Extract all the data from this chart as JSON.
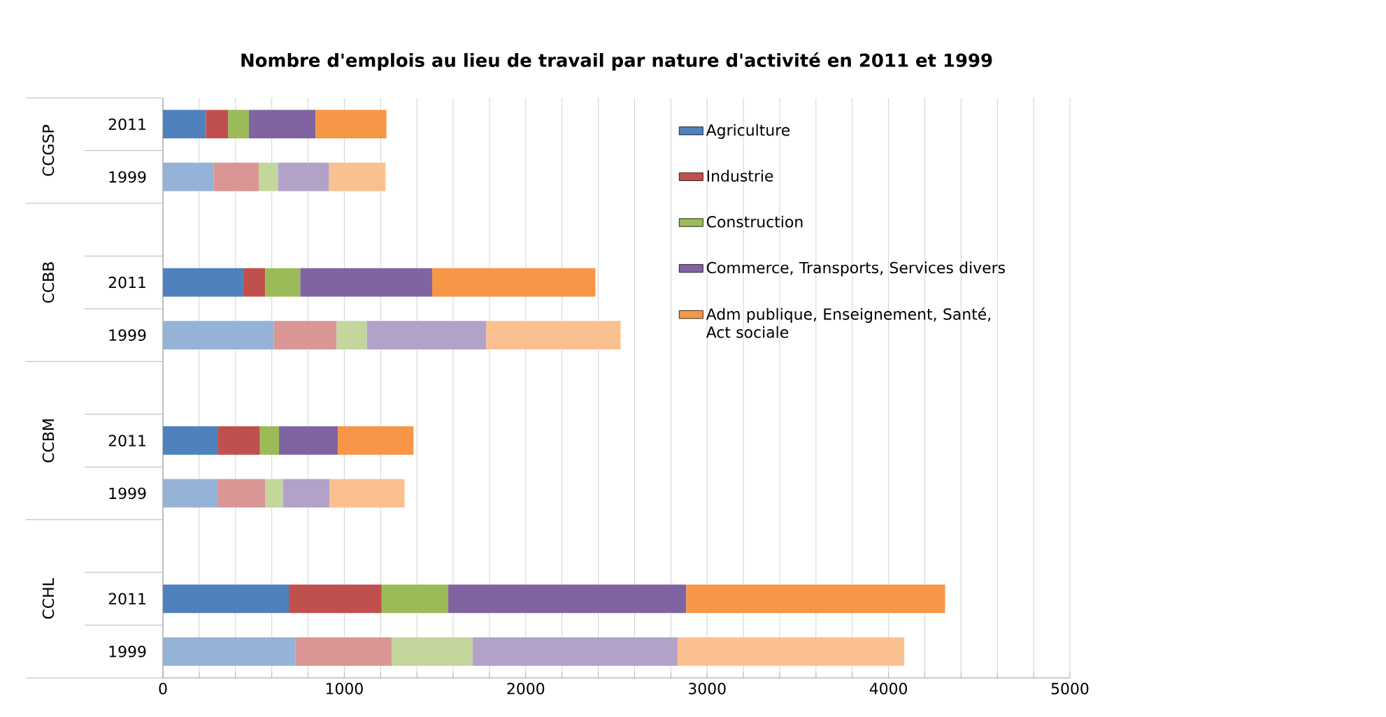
{
  "chart_data": {
    "type": "bar",
    "orientation": "horizontal",
    "stacked": true,
    "title": "Nombre d'emplois au lieu de travail par nature d'activité en 2011 et 1999",
    "categories": [
      "2011",
      "1999",
      null,
      "2011",
      "1999",
      null,
      "2011",
      "1999",
      null,
      "2011",
      "1999"
    ],
    "annotations": [
      "CCGSP",
      "CCBB",
      "CCBM",
      "CCHL"
    ],
    "series": [
      {
        "name": "Agriculture",
        "color": "#4f81bd",
        "colors": [
          "#4f81bd",
          "#95b3d7",
          null,
          "#4f81bd",
          "#95b3d7",
          null,
          "#4f81bd",
          "#95b3d7",
          null,
          "#4f81bd",
          "#95b3d7"
        ],
        "values": [
          237,
          279,
          null,
          443,
          611,
          null,
          301,
          301,
          null,
          694,
          730
        ]
      },
      {
        "name": "Industrie",
        "color": "#c0504d",
        "colors": [
          "#c0504d",
          "#d99694",
          null,
          "#c0504d",
          "#d99694",
          null,
          "#c0504d",
          "#d99694",
          null,
          "#c0504d",
          "#d99694"
        ],
        "values": [
          123,
          249,
          null,
          121,
          347,
          null,
          234,
          262,
          null,
          512,
          532
        ]
      },
      {
        "name": "Construction",
        "color": "#9bbb59",
        "colors": [
          "#9bbb59",
          "#c3d69b",
          null,
          "#9bbb59",
          "#c3d69b",
          null,
          "#9bbb59",
          "#c3d69b",
          null,
          "#9bbb59",
          "#c3d69b"
        ],
        "values": [
          114,
          106,
          null,
          193,
          166,
          null,
          105,
          98,
          null,
          367,
          445
        ]
      },
      {
        "name": "Commerce, Transports, Services divers",
        "color": "#8064a2",
        "colors": [
          "#8064a2",
          "#b3a2c7",
          null,
          "#8064a2",
          "#b3a2c7",
          null,
          "#8064a2",
          "#b3a2c7",
          null,
          "#8064a2",
          "#b3a2c7"
        ],
        "values": [
          368,
          282,
          null,
          727,
          659,
          null,
          324,
          257,
          null,
          1312,
          1130
        ]
      },
      {
        "name": "Adm publique, Enseignement, Santé, Act sociale",
        "color": "#f79646",
        "colors": [
          "#f79646",
          "#fac090",
          null,
          "#f79646",
          "#fac090",
          null,
          "#f79646",
          "#fac090",
          null,
          "#f79646",
          "#fac090"
        ],
        "values": [
          390,
          311,
          null,
          900,
          740,
          null,
          417,
          414,
          null,
          1427,
          1250
        ]
      }
    ],
    "xlim": [
      0,
      5000
    ],
    "xticks": [
      0,
      1000,
      2000,
      3000,
      4000,
      5000
    ],
    "grid": "x",
    "legend": "top right"
  }
}
